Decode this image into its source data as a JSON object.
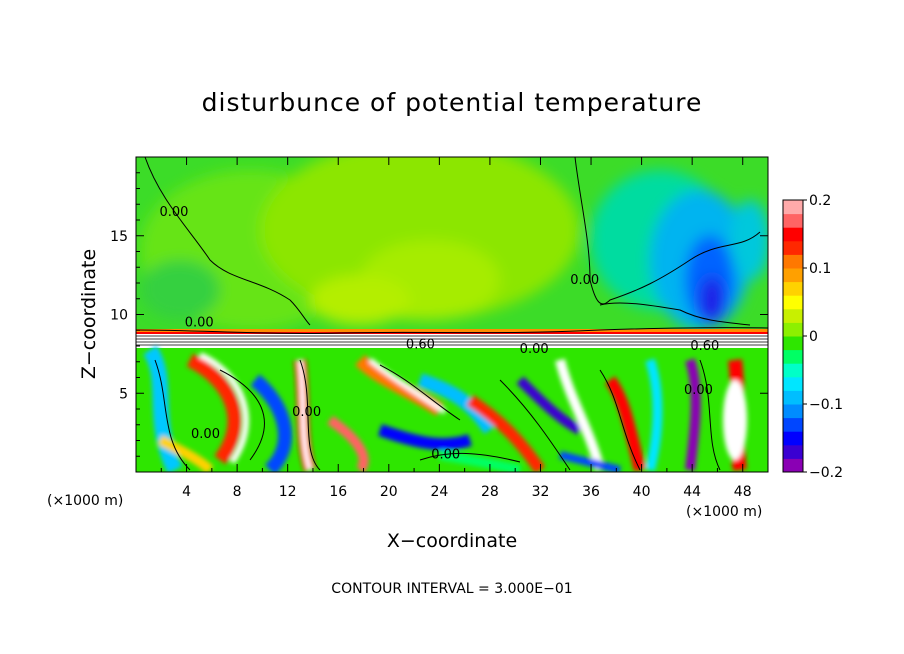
{
  "chart_data": {
    "type": "heatmap",
    "title": "disturbunce of potential temperature",
    "xlabel": "X−coordinate",
    "ylabel": "Z−coordinate",
    "x_unit": "(×1000 m)",
    "y_unit": "(×1000 m)",
    "xlim": [
      0,
      50
    ],
    "ylim": [
      0,
      20
    ],
    "x_ticks": [
      4,
      8,
      12,
      16,
      20,
      24,
      28,
      32,
      36,
      40,
      44,
      48
    ],
    "y_ticks": [
      5,
      10,
      15
    ],
    "colorbar": {
      "min": -0.2,
      "max": 0.2,
      "ticks": [
        -0.2,
        -0.1,
        0,
        0.1,
        0.2
      ],
      "tick_labels": [
        "−0.2",
        "−0.1",
        "0",
        "0.1",
        "0.2"
      ],
      "colors": [
        "#8a00b4",
        "#3a00d2",
        "#0000ff",
        "#0046ff",
        "#008cff",
        "#00beff",
        "#00e6ff",
        "#00ffc8",
        "#00ff64",
        "#2ee600",
        "#8cf000",
        "#c8f000",
        "#ffff00",
        "#ffd200",
        "#ffa000",
        "#ff7800",
        "#ff2800",
        "#ff0000",
        "#ff6464",
        "#ffaaaa"
      ]
    },
    "contour_interval": "CONTOUR INTERVAL = 3.000E−01",
    "contour_labels": [
      {
        "text": "0.00",
        "x": 3,
        "z": 16.5
      },
      {
        "text": "0.00",
        "x": 35.5,
        "z": 12.2
      },
      {
        "text": "0.00",
        "x": 5,
        "z": 9.5
      },
      {
        "text": "0.60",
        "x": 22.5,
        "z": 8.1
      },
      {
        "text": "0.00",
        "x": 31.5,
        "z": 7.8
      },
      {
        "text": "0.60",
        "x": 45,
        "z": 8.0
      },
      {
        "text": "0.00",
        "x": 13.5,
        "z": 3.8
      },
      {
        "text": "0.00",
        "x": 5.5,
        "z": 2.4
      },
      {
        "text": "0.00",
        "x": 24.5,
        "z": 1.1
      },
      {
        "text": "0.00",
        "x": 44.5,
        "z": 5.2
      }
    ]
  }
}
